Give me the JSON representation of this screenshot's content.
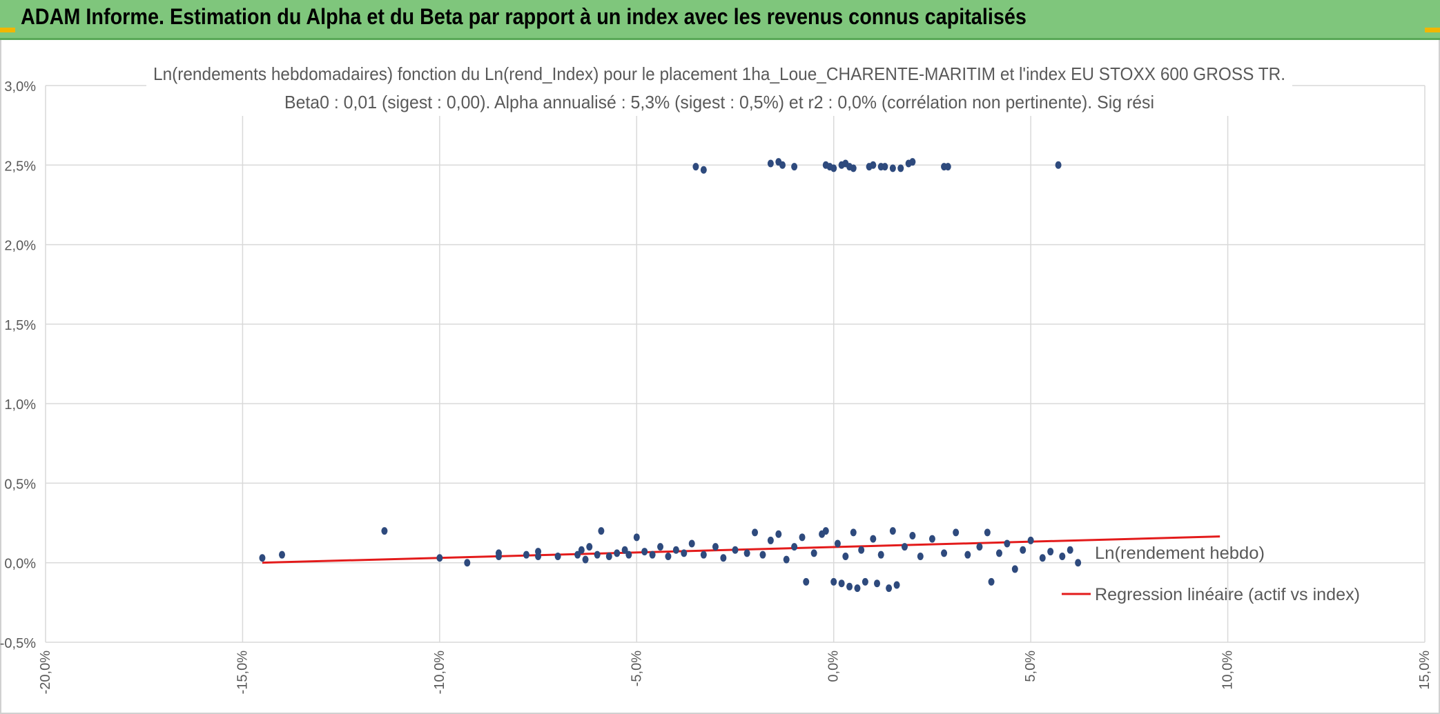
{
  "header": {
    "title": "ADAM Informe. Estimation du Alpha et du Beta par rapport à un index avec les revenus connus capitalisés",
    "accent_color": "#7fc67c",
    "corner_color": "#f2b600"
  },
  "chart_data": {
    "type": "scatter",
    "title": "Ln(rendements hebdomadaires) fonction du Ln(rend_Index) pour le placement 1ha_Loue_CHARENTE-MARITIM et l'index EU STOXX 600 GROSS TR.",
    "subtitle": "Beta0 : 0,01 (sigest : 0,00). Alpha annualisé : 5,3% (sigest : 0,5%) et r2 : 0,0% (corrélation non pertinente). Sig rési",
    "xlabel": "",
    "ylabel": "",
    "xlim": [
      -20,
      15
    ],
    "ylim": [
      -0.5,
      3.0
    ],
    "x_ticks": [
      -20,
      -15,
      -10,
      -5,
      0,
      5,
      10,
      15
    ],
    "x_tick_labels": [
      "-20,0%",
      "-15,0%",
      "-10,0%",
      "-5,0%",
      "0,0%",
      "5,0%",
      "10,0%",
      "15,0%"
    ],
    "y_ticks": [
      -0.5,
      0,
      0.5,
      1.0,
      1.5,
      2.0,
      2.5,
      3.0
    ],
    "y_tick_labels": [
      "-0,5%",
      "0,0%",
      "0,5%",
      "1,0%",
      "1,5%",
      "2,0%",
      "2,5%",
      "3,0%"
    ],
    "grid": true,
    "legend_position": "right",
    "series": [
      {
        "name": "Ln(rendement hebdo)",
        "kind": "scatter",
        "color": "#2e4a7d",
        "points": [
          [
            -14.5,
            0.03
          ],
          [
            -14.0,
            0.05
          ],
          [
            -11.4,
            0.2
          ],
          [
            -10.0,
            0.03
          ],
          [
            -9.3,
            0.0
          ],
          [
            -8.5,
            0.06
          ],
          [
            -8.5,
            0.04
          ],
          [
            -7.8,
            0.05
          ],
          [
            -7.5,
            0.04
          ],
          [
            -7.5,
            0.07
          ],
          [
            -7.0,
            0.04
          ],
          [
            -6.5,
            0.05
          ],
          [
            -6.4,
            0.08
          ],
          [
            -6.3,
            0.02
          ],
          [
            -6.2,
            0.1
          ],
          [
            -6.0,
            0.05
          ],
          [
            -5.9,
            0.2
          ],
          [
            -5.7,
            0.04
          ],
          [
            -5.5,
            0.06
          ],
          [
            -5.3,
            0.08
          ],
          [
            -5.2,
            0.05
          ],
          [
            -5.0,
            0.16
          ],
          [
            -4.8,
            0.07
          ],
          [
            -4.6,
            0.05
          ],
          [
            -4.4,
            0.1
          ],
          [
            -4.2,
            0.04
          ],
          [
            -4.0,
            0.08
          ],
          [
            -3.8,
            0.06
          ],
          [
            -3.6,
            0.12
          ],
          [
            -3.3,
            0.05
          ],
          [
            -3.0,
            0.1
          ],
          [
            -2.8,
            0.03
          ],
          [
            -2.5,
            0.08
          ],
          [
            -2.2,
            0.06
          ],
          [
            -2.0,
            0.19
          ],
          [
            -1.8,
            0.05
          ],
          [
            -1.6,
            0.14
          ],
          [
            -1.4,
            0.18
          ],
          [
            -1.2,
            0.02
          ],
          [
            -1.0,
            0.1
          ],
          [
            -0.8,
            0.16
          ],
          [
            -0.7,
            -0.12
          ],
          [
            -0.5,
            0.06
          ],
          [
            -0.3,
            0.18
          ],
          [
            -0.2,
            0.2
          ],
          [
            0.0,
            -0.12
          ],
          [
            0.1,
            0.12
          ],
          [
            0.2,
            -0.13
          ],
          [
            0.3,
            0.04
          ],
          [
            0.4,
            -0.15
          ],
          [
            0.5,
            0.19
          ],
          [
            0.6,
            -0.16
          ],
          [
            0.7,
            0.08
          ],
          [
            0.8,
            -0.12
          ],
          [
            1.0,
            0.15
          ],
          [
            1.1,
            -0.13
          ],
          [
            1.2,
            0.05
          ],
          [
            1.4,
            -0.16
          ],
          [
            1.5,
            0.2
          ],
          [
            1.6,
            -0.14
          ],
          [
            1.8,
            0.1
          ],
          [
            2.0,
            0.17
          ],
          [
            2.2,
            0.04
          ],
          [
            2.5,
            0.15
          ],
          [
            2.8,
            0.06
          ],
          [
            3.1,
            0.19
          ],
          [
            3.4,
            0.05
          ],
          [
            3.7,
            0.1
          ],
          [
            3.9,
            0.19
          ],
          [
            4.0,
            -0.12
          ],
          [
            4.2,
            0.06
          ],
          [
            4.4,
            0.12
          ],
          [
            4.6,
            -0.04
          ],
          [
            4.8,
            0.08
          ],
          [
            5.0,
            0.14
          ],
          [
            5.3,
            0.03
          ],
          [
            5.5,
            0.07
          ],
          [
            5.8,
            0.04
          ],
          [
            6.0,
            0.08
          ],
          [
            6.2,
            0.0
          ],
          [
            -3.5,
            2.49
          ],
          [
            -3.3,
            2.47
          ],
          [
            -1.6,
            2.51
          ],
          [
            -1.4,
            2.52
          ],
          [
            -1.3,
            2.5
          ],
          [
            -1.0,
            2.49
          ],
          [
            -0.2,
            2.5
          ],
          [
            -0.1,
            2.49
          ],
          [
            0.0,
            2.48
          ],
          [
            0.2,
            2.5
          ],
          [
            0.3,
            2.51
          ],
          [
            0.4,
            2.49
          ],
          [
            0.5,
            2.48
          ],
          [
            0.9,
            2.49
          ],
          [
            1.0,
            2.5
          ],
          [
            1.2,
            2.49
          ],
          [
            1.3,
            2.49
          ],
          [
            1.5,
            2.48
          ],
          [
            1.7,
            2.48
          ],
          [
            1.9,
            2.51
          ],
          [
            2.0,
            2.52
          ],
          [
            2.8,
            2.49
          ],
          [
            2.9,
            2.49
          ],
          [
            5.7,
            2.5
          ]
        ]
      },
      {
        "name": "Regression linéaire (actif vs index)",
        "kind": "line",
        "color": "#e31b1b",
        "points": [
          [
            -14.5,
            0.0
          ],
          [
            9.8,
            0.165
          ]
        ]
      }
    ]
  }
}
